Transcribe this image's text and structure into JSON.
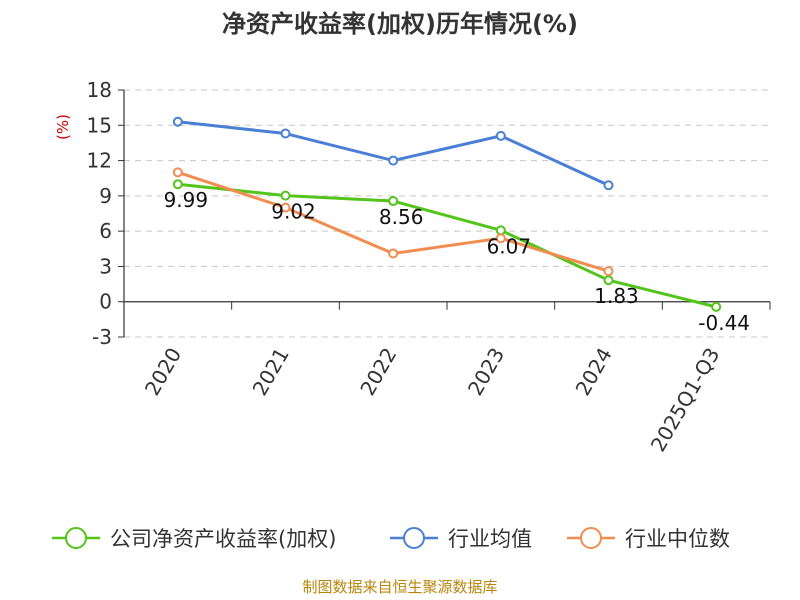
{
  "chart_data": {
    "type": "line",
    "title": "净资产收益率(加权)历年情况(%)",
    "ylabel": "(%)",
    "xlabel": "",
    "categories": [
      "2020",
      "2021",
      "2022",
      "2023",
      "2024",
      "2025Q1-Q3"
    ],
    "ylim": [
      -3,
      18
    ],
    "yticks": [
      18,
      15,
      12,
      9,
      6,
      3,
      0,
      -3
    ],
    "grid": true,
    "legend_position": "bottom",
    "series": [
      {
        "name": "公司净资产收益率(加权)",
        "color": "#52c41a",
        "values": [
          9.99,
          9.02,
          8.56,
          6.07,
          1.83,
          -0.44
        ],
        "labels": [
          "9.99",
          "9.02",
          "8.56",
          "6.07",
          "1.83",
          "-0.44"
        ]
      },
      {
        "name": "行业均值",
        "color": "#4a7fd6",
        "values": [
          15.3,
          14.3,
          12.0,
          14.1,
          9.9,
          null
        ]
      },
      {
        "name": "行业中位数",
        "color": "#f28d52",
        "values": [
          11.0,
          8.0,
          4.1,
          5.4,
          2.6,
          null
        ]
      }
    ]
  },
  "source": "制图数据来自恒生聚源数据库"
}
